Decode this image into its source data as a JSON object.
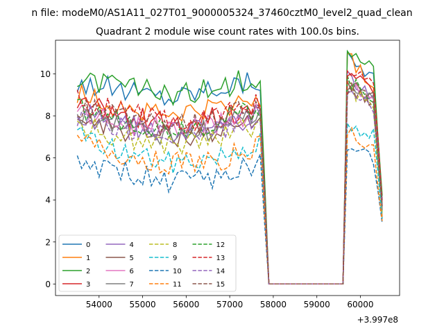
{
  "suptitle": "n file: modeM0/AS1A11_027T01_9000005324_37460cztM0_level2_quad_clean",
  "chart_data": {
    "type": "line",
    "title": "Quadrant 2 module wise count rates with 100.0s bins.",
    "xlabel": "",
    "ylabel": "",
    "x_offset_label": "+3.997e8",
    "xlim": [
      53000,
      60900
    ],
    "ylim": [
      -0.55,
      11.6
    ],
    "xticks": [
      54000,
      55000,
      56000,
      57000,
      58000,
      59000,
      60000
    ],
    "yticks": [
      0,
      2,
      4,
      6,
      8,
      10
    ],
    "grid": false,
    "legend": {
      "placement": "lower-left",
      "ncol": 4
    },
    "bin_size_s": 100,
    "x_start": 53500,
    "x_end": 60500,
    "gap": {
      "from": 57800,
      "to": 59600
    },
    "edge_values": {
      "gap_start_x": 57800,
      "gap_start_y": 0,
      "gap_end_x": 59600,
      "gap_end_y": 0
    },
    "series": [
      {
        "name": "0",
        "style": "solid",
        "color": "#1f77b4",
        "baseline": [
          9.6,
          9.2,
          8.9,
          9.4,
          9.7
        ],
        "second": [
          10.8,
          10.5,
          10.2,
          9.9,
          4.0
        ]
      },
      {
        "name": "1",
        "style": "solid",
        "color": "#ff7f0e",
        "baseline": [
          9.0,
          8.4,
          8.0,
          8.3,
          8.9
        ],
        "second": [
          10.9,
          10.4,
          9.8,
          9.6,
          3.2
        ]
      },
      {
        "name": "2",
        "style": "solid",
        "color": "#2ca02c",
        "baseline": [
          9.7,
          9.4,
          9.0,
          9.3,
          10.0
        ],
        "second": [
          11.2,
          10.8,
          10.5,
          10.3,
          4.2
        ]
      },
      {
        "name": "3",
        "style": "solid",
        "color": "#d62728",
        "baseline": [
          8.6,
          8.0,
          7.6,
          7.9,
          8.6
        ],
        "second": [
          10.2,
          9.8,
          9.6,
          9.4,
          3.8
        ]
      },
      {
        "name": "4",
        "style": "solid",
        "color": "#9467bd",
        "baseline": [
          8.1,
          7.6,
          7.2,
          7.4,
          8.2
        ],
        "second": [
          9.9,
          9.5,
          9.2,
          9.0,
          3.6
        ]
      },
      {
        "name": "5",
        "style": "solid",
        "color": "#8c564b",
        "baseline": [
          7.9,
          7.3,
          7.0,
          7.2,
          8.0
        ],
        "second": [
          9.6,
          9.3,
          9.0,
          8.8,
          3.5
        ]
      },
      {
        "name": "6",
        "style": "solid",
        "color": "#e377c2",
        "baseline": [
          8.2,
          7.7,
          7.4,
          7.6,
          8.4
        ],
        "second": [
          9.8,
          9.4,
          9.1,
          8.9,
          3.7
        ]
      },
      {
        "name": "7",
        "style": "solid",
        "color": "#7f7f7f",
        "baseline": [
          8.0,
          7.5,
          7.1,
          7.3,
          8.3
        ],
        "second": [
          9.5,
          9.2,
          8.9,
          8.6,
          3.5
        ]
      },
      {
        "name": "8",
        "style": "dashed",
        "color": "#bcbd22",
        "baseline": [
          7.6,
          7.0,
          6.6,
          6.9,
          7.6
        ],
        "second": [
          9.4,
          9.0,
          8.7,
          8.5,
          3.4
        ]
      },
      {
        "name": "9",
        "style": "dashed",
        "color": "#17becf",
        "baseline": [
          7.1,
          6.3,
          5.8,
          6.1,
          6.9
        ],
        "second": [
          7.6,
          7.3,
          7.0,
          7.2,
          3.1
        ]
      },
      {
        "name": "10",
        "style": "dashed",
        "color": "#1f77b4",
        "baseline": [
          5.8,
          5.3,
          4.9,
          5.1,
          5.8
        ],
        "second": [
          6.5,
          6.3,
          6.1,
          5.9,
          2.9
        ]
      },
      {
        "name": "11",
        "style": "dashed",
        "color": "#ff7f0e",
        "baseline": [
          6.7,
          6.1,
          5.7,
          5.9,
          6.6
        ],
        "second": [
          7.4,
          7.0,
          6.7,
          6.5,
          3.0
        ]
      },
      {
        "name": "12",
        "style": "dashed",
        "color": "#2ca02c",
        "baseline": [
          8.3,
          7.8,
          7.4,
          7.7,
          8.5
        ],
        "second": [
          9.7,
          9.4,
          9.1,
          8.9,
          3.7
        ]
      },
      {
        "name": "13",
        "style": "dashed",
        "color": "#d62728",
        "baseline": [
          8.7,
          8.1,
          7.7,
          8.0,
          8.8
        ],
        "second": [
          10.1,
          9.8,
          9.7,
          9.5,
          3.9
        ]
      },
      {
        "name": "14",
        "style": "dashed",
        "color": "#9467bd",
        "baseline": [
          8.0,
          7.4,
          7.1,
          7.3,
          8.1
        ],
        "second": [
          9.2,
          8.9,
          8.7,
          8.5,
          3.6
        ]
      },
      {
        "name": "15",
        "style": "dashed",
        "color": "#8c564b",
        "baseline": [
          8.4,
          7.9,
          7.5,
          7.8,
          8.6
        ],
        "second": [
          9.3,
          9.1,
          8.9,
          8.7,
          3.7
        ]
      }
    ]
  }
}
